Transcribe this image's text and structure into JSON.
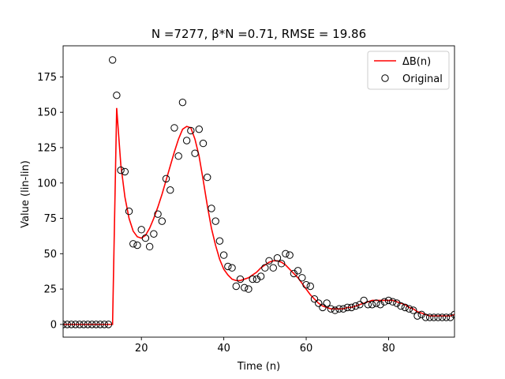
{
  "chart_data": {
    "type": "line",
    "title": "N =7277, β*N =0.71, RMSE = 19.86",
    "xlabel": "Time (n)",
    "ylabel": "Value (lin-lin)",
    "xlim": [
      1,
      96
    ],
    "ylim": [
      -9,
      197
    ],
    "xticks": [
      20,
      40,
      60,
      80
    ],
    "yticks": [
      0,
      25,
      50,
      75,
      100,
      125,
      150,
      175
    ],
    "grid": false,
    "legend_position": "top-right",
    "series": [
      {
        "name": "ΔB(n)",
        "style": "line",
        "color": "#ff0000",
        "x": [
          1,
          2,
          3,
          4,
          5,
          6,
          7,
          8,
          9,
          10,
          11,
          12,
          13,
          14,
          15,
          16,
          17,
          18,
          19,
          20,
          21,
          22,
          23,
          24,
          25,
          26,
          27,
          28,
          29,
          30,
          31,
          32,
          33,
          34,
          35,
          36,
          37,
          38,
          39,
          40,
          41,
          42,
          43,
          44,
          45,
          46,
          47,
          48,
          49,
          50,
          51,
          52,
          53,
          54,
          55,
          56,
          57,
          58,
          59,
          60,
          61,
          62,
          63,
          64,
          65,
          66,
          67,
          68,
          69,
          70,
          71,
          72,
          73,
          74,
          75,
          76,
          77,
          78,
          79,
          80,
          81,
          82,
          83,
          84,
          85,
          86,
          87,
          88,
          89,
          90,
          91,
          92,
          93,
          94,
          95,
          96
        ],
        "y": [
          0,
          0,
          0,
          0,
          0,
          0,
          0,
          0,
          0,
          0,
          0,
          0,
          0,
          153,
          113,
          90,
          75,
          66,
          62,
          61,
          63,
          68,
          75,
          83,
          92,
          102,
          112,
          122,
          131,
          138,
          140,
          139,
          131,
          119,
          102,
          84,
          68,
          56,
          46,
          39,
          35,
          32,
          31,
          31,
          32,
          33,
          35,
          37,
          40,
          42,
          44,
          45,
          45,
          44,
          42,
          39,
          36,
          33,
          29,
          25,
          21,
          18,
          15,
          13,
          12,
          11,
          11,
          11,
          11,
          12,
          12,
          13,
          14,
          15,
          16,
          17,
          17,
          17,
          17,
          17,
          17,
          16,
          15,
          14,
          12,
          11,
          9,
          8,
          7,
          6,
          6,
          6,
          6,
          6,
          6,
          7
        ]
      },
      {
        "name": "Original",
        "style": "scatter",
        "color": "#000000",
        "x": [
          1,
          2,
          3,
          4,
          5,
          6,
          7,
          8,
          9,
          10,
          11,
          12,
          13,
          14,
          15,
          16,
          17,
          18,
          19,
          20,
          21,
          22,
          23,
          24,
          25,
          26,
          27,
          28,
          29,
          30,
          31,
          32,
          33,
          34,
          35,
          36,
          37,
          38,
          39,
          40,
          41,
          42,
          43,
          44,
          45,
          46,
          47,
          48,
          49,
          50,
          51,
          52,
          53,
          54,
          55,
          56,
          57,
          58,
          59,
          60,
          61,
          62,
          63,
          64,
          65,
          66,
          67,
          68,
          69,
          70,
          71,
          72,
          73,
          74,
          75,
          76,
          77,
          78,
          79,
          80,
          81,
          82,
          83,
          84,
          85,
          86,
          87,
          88,
          89,
          90,
          91,
          92,
          93,
          94,
          95,
          96
        ],
        "y": [
          0,
          0,
          0,
          0,
          0,
          0,
          0,
          0,
          0,
          0,
          0,
          0,
          187,
          162,
          109,
          108,
          80,
          57,
          56,
          67,
          61,
          55,
          64,
          78,
          73,
          103,
          95,
          139,
          119,
          157,
          130,
          137,
          121,
          138,
          128,
          104,
          82,
          73,
          59,
          49,
          41,
          40,
          27,
          32,
          26,
          25,
          32,
          32,
          34,
          40,
          45,
          40,
          47,
          43,
          50,
          49,
          36,
          38,
          33,
          28,
          27,
          18,
          15,
          12,
          15,
          11,
          10,
          11,
          11,
          12,
          12,
          13,
          14,
          17,
          14,
          14,
          15,
          14,
          16,
          17,
          16,
          15,
          13,
          12,
          11,
          10,
          6,
          7,
          5,
          5,
          5,
          5,
          5,
          5,
          5,
          7
        ]
      }
    ]
  }
}
